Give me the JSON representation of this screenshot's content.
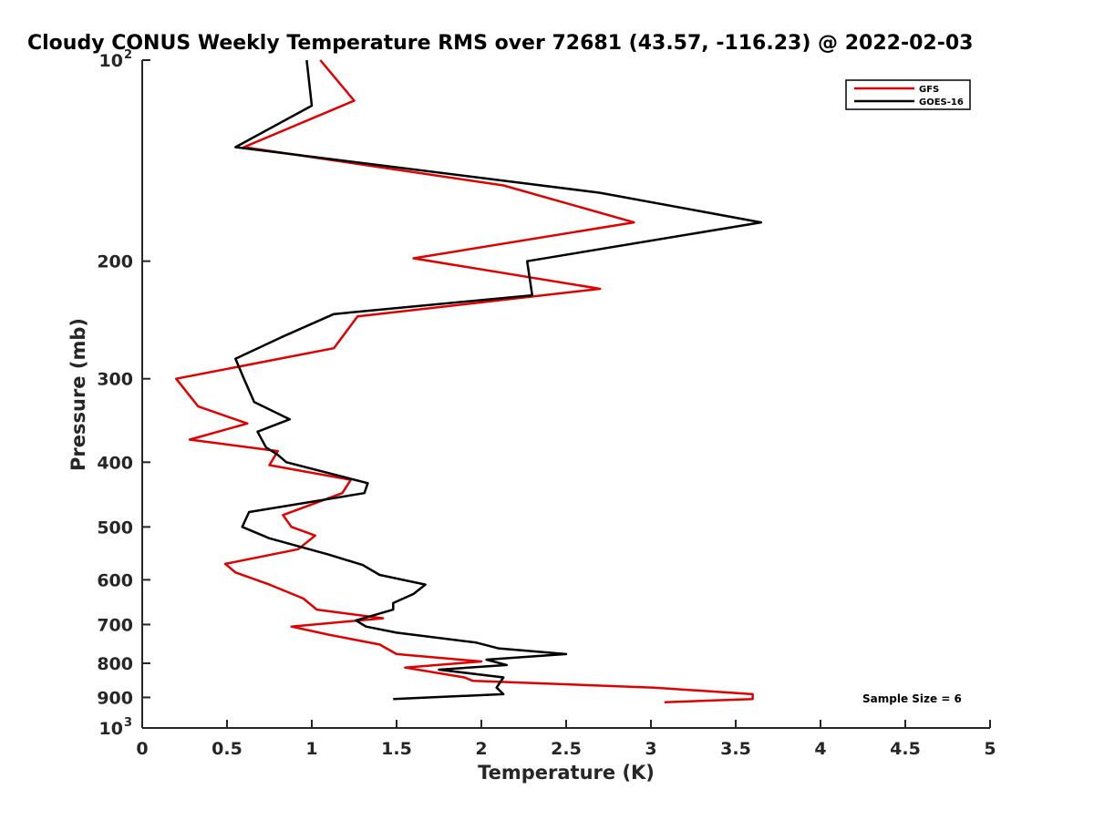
{
  "chart_data": {
    "type": "line",
    "title": "Cloudy CONUS Weekly Temperature RMS over 72681 (43.57, -116.23) @ 2022-02-03",
    "xlabel": "Temperature (K)",
    "ylabel": "Pressure (mb)",
    "xlim": [
      0,
      5
    ],
    "ylim": [
      100,
      1000
    ],
    "yscale": "log",
    "y_reversed": true,
    "grid": false,
    "legend_position": "top-right",
    "annotation": "Sample Size = 6",
    "x_ticks": [
      "0",
      "0.5",
      "1",
      "1.5",
      "2",
      "2.5",
      "3",
      "3.5",
      "4",
      "4.5",
      "5"
    ],
    "y_ticks": [
      {
        "value": 100,
        "label": "10",
        "exp": "2"
      },
      {
        "value": 200,
        "label": "200"
      },
      {
        "value": 300,
        "label": "300"
      },
      {
        "value": 400,
        "label": "400"
      },
      {
        "value": 500,
        "label": "500"
      },
      {
        "value": 600,
        "label": "600"
      },
      {
        "value": 700,
        "label": "700"
      },
      {
        "value": 800,
        "label": "800"
      },
      {
        "value": 900,
        "label": "900"
      },
      {
        "value": 1000,
        "label": "10",
        "exp": "3"
      }
    ],
    "series": [
      {
        "name": "GFS",
        "color": "#e00000",
        "points": [
          [
            1.05,
            100
          ],
          [
            1.25,
            115
          ],
          [
            0.6,
            135
          ],
          [
            2.13,
            154
          ],
          [
            2.9,
            175
          ],
          [
            1.6,
            198
          ],
          [
            2.7,
            220
          ],
          [
            1.27,
            242
          ],
          [
            1.13,
            270
          ],
          [
            0.2,
            300
          ],
          [
            0.33,
            330
          ],
          [
            0.62,
            350
          ],
          [
            0.28,
            370
          ],
          [
            0.8,
            385
          ],
          [
            0.75,
            404
          ],
          [
            1.23,
            425
          ],
          [
            1.18,
            445
          ],
          [
            0.83,
            480
          ],
          [
            0.88,
            500
          ],
          [
            1.02,
            515
          ],
          [
            0.92,
            540
          ],
          [
            0.49,
            568
          ],
          [
            0.55,
            585
          ],
          [
            0.75,
            610
          ],
          [
            0.95,
            640
          ],
          [
            1.03,
            665
          ],
          [
            1.42,
            685
          ],
          [
            0.88,
            705
          ],
          [
            1.1,
            725
          ],
          [
            1.4,
            750
          ],
          [
            1.5,
            775
          ],
          [
            2.0,
            795
          ],
          [
            1.55,
            812
          ],
          [
            1.9,
            840
          ],
          [
            1.95,
            850
          ],
          [
            3.02,
            870
          ],
          [
            3.6,
            890
          ],
          [
            3.6,
            905
          ],
          [
            3.08,
            915
          ]
        ]
      },
      {
        "name": "GOES-16",
        "color": "#000000",
        "points": [
          [
            0.97,
            100
          ],
          [
            1.0,
            117
          ],
          [
            0.55,
            135
          ],
          [
            2.7,
            158
          ],
          [
            3.65,
            175
          ],
          [
            2.27,
            200
          ],
          [
            2.3,
            225
          ],
          [
            1.13,
            240
          ],
          [
            0.82,
            260
          ],
          [
            0.55,
            280
          ],
          [
            0.6,
            300
          ],
          [
            0.66,
            325
          ],
          [
            0.87,
            345
          ],
          [
            0.68,
            360
          ],
          [
            0.73,
            380
          ],
          [
            0.8,
            390
          ],
          [
            0.85,
            400
          ],
          [
            1.33,
            430
          ],
          [
            1.31,
            445
          ],
          [
            0.63,
            475
          ],
          [
            0.59,
            500
          ],
          [
            0.75,
            520
          ],
          [
            1.1,
            550
          ],
          [
            1.3,
            570
          ],
          [
            1.4,
            590
          ],
          [
            1.67,
            610
          ],
          [
            1.6,
            630
          ],
          [
            1.48,
            650
          ],
          [
            1.48,
            665
          ],
          [
            1.26,
            690
          ],
          [
            1.32,
            705
          ],
          [
            1.5,
            720
          ],
          [
            1.97,
            745
          ],
          [
            2.1,
            760
          ],
          [
            2.5,
            775
          ],
          [
            2.03,
            790
          ],
          [
            2.15,
            805
          ],
          [
            1.75,
            818
          ],
          [
            2.13,
            840
          ],
          [
            2.09,
            870
          ],
          [
            2.13,
            890
          ],
          [
            1.48,
            905
          ]
        ]
      }
    ]
  }
}
